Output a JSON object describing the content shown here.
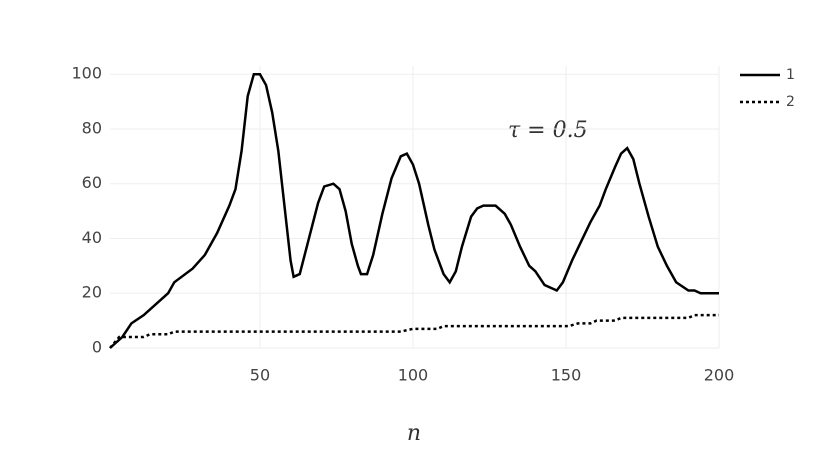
{
  "chart_data": {
    "type": "line",
    "annotation": "τ = 0.5",
    "x_label": "n",
    "xlim": [
      1,
      200
    ],
    "ylim": [
      0,
      103
    ],
    "xticks": [
      50,
      100,
      150,
      200
    ],
    "yticks": [
      0,
      20,
      40,
      60,
      80,
      100
    ],
    "grid": true,
    "legend": "top-right",
    "series": [
      {
        "name": "1",
        "color": "#000000",
        "dash": "solid",
        "x": [
          1,
          5,
          8,
          12,
          20,
          22,
          28,
          32,
          36,
          40,
          42,
          44,
          46,
          48,
          50,
          52,
          54,
          56,
          58,
          60,
          61,
          63,
          66,
          69,
          71,
          74,
          76,
          78,
          80,
          82,
          83,
          85,
          87,
          90,
          93,
          96,
          98,
          100,
          102,
          105,
          107,
          110,
          112,
          114,
          116,
          119,
          121,
          123,
          127,
          130,
          132,
          135,
          138,
          140,
          143,
          145,
          147,
          149,
          152,
          155,
          158,
          161,
          163,
          166,
          168,
          170,
          172,
          174,
          177,
          180,
          183,
          186,
          190,
          192,
          194,
          200
        ],
        "values": [
          0,
          4,
          9,
          12,
          20,
          24,
          29,
          34,
          42,
          52,
          58,
          72,
          92,
          100,
          100,
          96,
          86,
          72,
          52,
          32,
          26,
          27,
          40,
          53,
          59,
          60,
          58,
          50,
          38,
          30,
          27,
          27,
          34,
          49,
          62,
          70,
          71,
          67,
          60,
          45,
          36,
          27,
          24,
          28,
          37,
          48,
          51,
          52,
          52,
          49,
          45,
          37,
          30,
          28,
          23,
          22,
          21,
          24,
          32,
          39,
          46,
          52,
          58,
          66,
          71,
          73,
          69,
          60,
          48,
          37,
          30,
          24,
          21,
          21,
          20,
          20
        ]
      },
      {
        "name": "2",
        "color": "#000000",
        "dash": "dot",
        "x": [
          1,
          4,
          12,
          14,
          20,
          22,
          96,
          100,
          108,
          110,
          151,
          154,
          158,
          160,
          166,
          168,
          190,
          192,
          200
        ],
        "values": [
          0,
          4,
          4,
          5,
          5,
          6,
          6,
          7,
          7,
          8,
          8,
          9,
          9,
          10,
          10,
          11,
          11,
          12,
          12
        ]
      }
    ]
  }
}
